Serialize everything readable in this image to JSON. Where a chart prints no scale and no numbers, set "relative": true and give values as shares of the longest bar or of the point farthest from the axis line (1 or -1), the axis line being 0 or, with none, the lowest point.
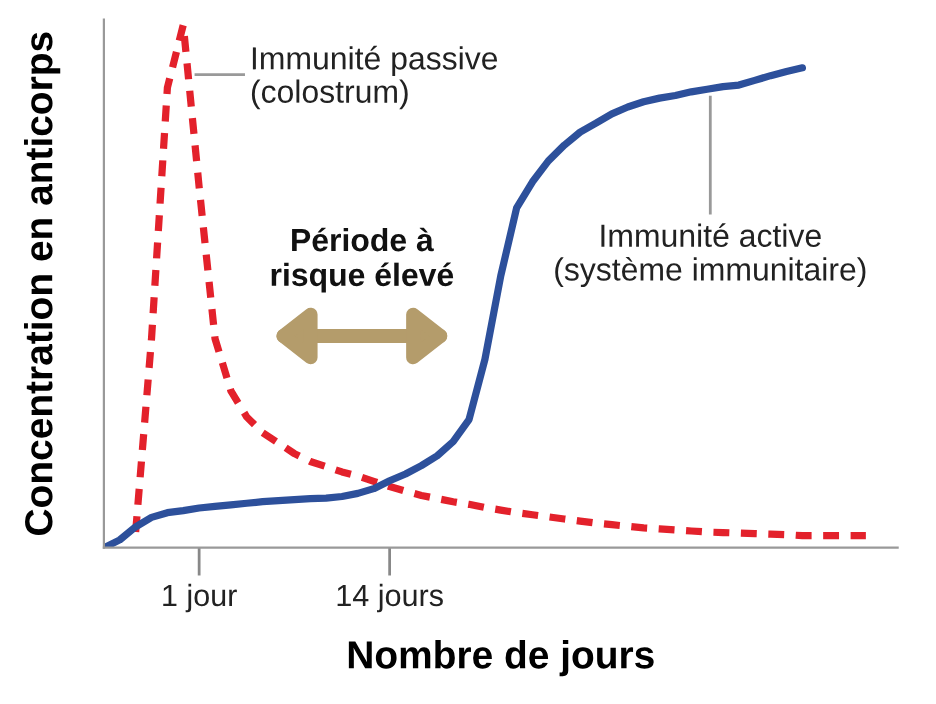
{
  "chart_data": {
    "type": "line",
    "relative": true,
    "xlabel": "Nombre de jours",
    "ylabel": "Concentration en anticorps",
    "categories": [
      null,
      null,
      null,
      null,
      null,
      null,
      "1 jour",
      null,
      null,
      null,
      null,
      null,
      null,
      null,
      null,
      null,
      null,
      null,
      "14 jours",
      null,
      null,
      null,
      null,
      null,
      null,
      null,
      null,
      null,
      null,
      null,
      null,
      null,
      null,
      null,
      null,
      null,
      null,
      null,
      null,
      null,
      null,
      null,
      null,
      null,
      null,
      null,
      null,
      null,
      null,
      null,
      null
    ],
    "annotations": [
      "Période à\nrisque élevé"
    ],
    "series": [
      {
        "name": "Immunité passive\n(colostrum)",
        "color": "#e3212b",
        "line_style": "dashed",
        "values": [
          null,
          null,
          0.03,
          0.4,
          0.88,
          1.0,
          0.69,
          0.4,
          0.3,
          0.25,
          0.22,
          0.2,
          0.18,
          0.165,
          0.155,
          0.145,
          0.137,
          0.127,
          0.117,
          0.108,
          0.1,
          0.094,
          0.088,
          0.083,
          0.077,
          0.072,
          0.067,
          0.063,
          0.059,
          0.055,
          0.051,
          0.047,
          0.044,
          0.041,
          0.038,
          0.036,
          0.034,
          0.032,
          0.03,
          0.029,
          0.028,
          0.027,
          0.026,
          0.025,
          0.023,
          0.023,
          0.023,
          0.023,
          0.023,
          null,
          null
        ]
      },
      {
        "name": "Immunité active\n(système immunitaire)",
        "color": "#2d509b",
        "line_style": "solid",
        "values": [
          0,
          0.015,
          0.04,
          0.058,
          0.067,
          0.071,
          0.076,
          0.079,
          0.082,
          0.085,
          0.088,
          0.09,
          0.092,
          0.094,
          0.095,
          0.098,
          0.104,
          0.113,
          0.128,
          0.141,
          0.157,
          0.176,
          0.203,
          0.245,
          0.36,
          0.52,
          0.65,
          0.7,
          0.74,
          0.77,
          0.795,
          0.812,
          0.83,
          0.843,
          0.853,
          0.86,
          0.865,
          0.872,
          0.877,
          0.882,
          0.885,
          0.894,
          0.903,
          0.911,
          0.918,
          null,
          null,
          null,
          null,
          null,
          null
        ]
      }
    ]
  }
}
